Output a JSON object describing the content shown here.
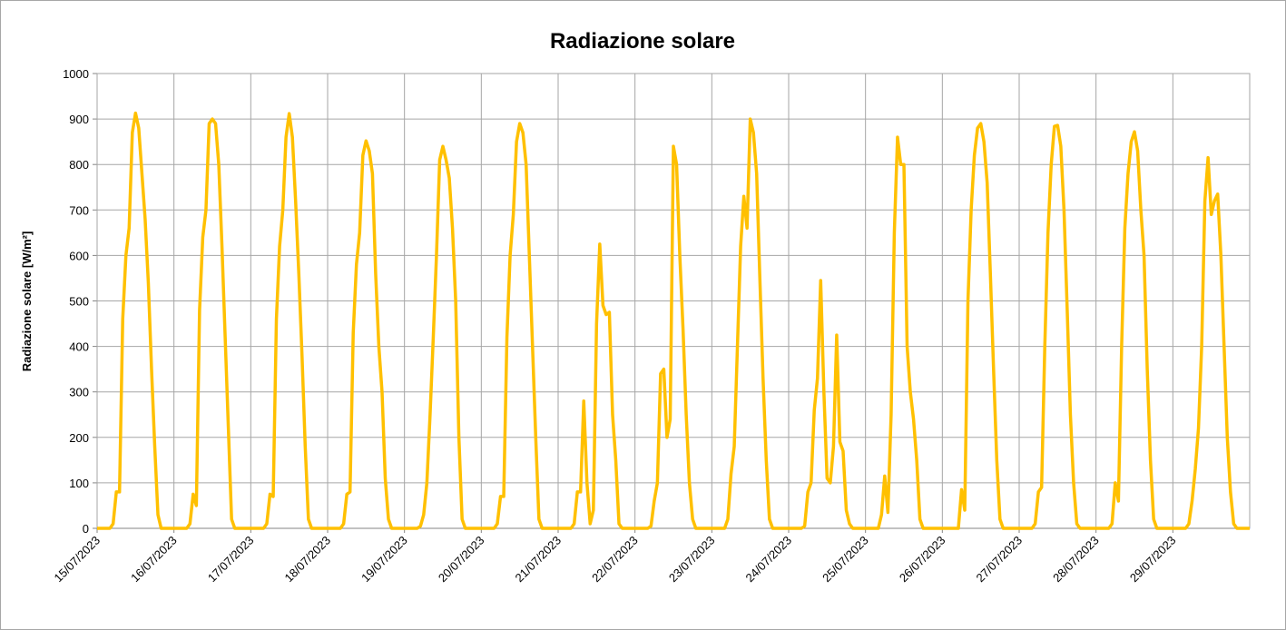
{
  "chart_data": {
    "type": "line",
    "title": "Radiazione solare",
    "y_label": "Radiazione solare [W/m²]",
    "color": "#ffc000",
    "grid": true,
    "xlim": [
      0,
      360
    ],
    "ylim": [
      0,
      1000
    ],
    "yticks": [
      0,
      100,
      200,
      300,
      400,
      500,
      600,
      700,
      800,
      900,
      1000
    ],
    "xticks": [
      {
        "value": 0,
        "label": "15/07/2023"
      },
      {
        "value": 24,
        "label": "16/07/2023"
      },
      {
        "value": 48,
        "label": "17/07/2023"
      },
      {
        "value": 72,
        "label": "18/07/2023"
      },
      {
        "value": 96,
        "label": "19/07/2023"
      },
      {
        "value": 120,
        "label": "20/07/2023"
      },
      {
        "value": 144,
        "label": "21/07/2023"
      },
      {
        "value": 168,
        "label": "22/07/2023"
      },
      {
        "value": 192,
        "label": "23/07/2023"
      },
      {
        "value": 216,
        "label": "24/07/2023"
      },
      {
        "value": 240,
        "label": "25/07/2023"
      },
      {
        "value": 264,
        "label": "26/07/2023"
      },
      {
        "value": 288,
        "label": "27/07/2023"
      },
      {
        "value": 312,
        "label": "28/07/2023"
      },
      {
        "value": 336,
        "label": "29/07/2023"
      }
    ],
    "x": [
      0,
      4,
      5,
      6,
      7,
      8,
      9,
      10,
      11,
      12,
      13,
      14,
      15,
      16,
      17,
      18,
      19,
      20,
      21,
      28,
      29,
      30,
      31,
      32,
      33,
      34,
      35,
      36,
      37,
      38,
      39,
      40,
      41,
      42,
      43,
      44,
      45,
      52,
      53,
      54,
      55,
      56,
      57,
      58,
      59,
      60,
      61,
      62,
      63,
      64,
      65,
      66,
      67,
      68,
      69,
      76,
      77,
      78,
      79,
      80,
      81,
      82,
      83,
      84,
      85,
      86,
      87,
      88,
      89,
      90,
      91,
      92,
      93,
      100,
      101,
      102,
      103,
      104,
      105,
      106,
      107,
      108,
      109,
      110,
      111,
      112,
      113,
      114,
      115,
      116,
      117,
      124,
      125,
      126,
      127,
      128,
      129,
      130,
      131,
      132,
      133,
      134,
      135,
      136,
      137,
      138,
      139,
      140,
      141,
      148,
      149,
      150,
      151,
      152,
      153,
      154,
      155,
      156,
      157,
      158,
      159,
      160,
      161,
      162,
      163,
      164,
      165,
      172,
      173,
      174,
      175,
      176,
      177,
      178,
      179,
      180,
      181,
      182,
      183,
      184,
      185,
      186,
      187,
      188,
      189,
      196,
      197,
      198,
      199,
      200,
      201,
      202,
      203,
      204,
      205,
      206,
      207,
      208,
      209,
      210,
      211,
      212,
      213,
      220,
      221,
      222,
      223,
      224,
      225,
      226,
      227,
      228,
      229,
      230,
      231,
      232,
      233,
      234,
      235,
      236,
      237,
      244,
      245,
      246,
      247,
      248,
      249,
      250,
      251,
      252,
      253,
      254,
      255,
      256,
      257,
      258,
      259,
      260,
      261,
      268,
      269,
      270,
      271,
      272,
      273,
      274,
      275,
      276,
      277,
      278,
      279,
      280,
      281,
      282,
      283,
      284,
      285,
      292,
      293,
      294,
      295,
      296,
      297,
      298,
      299,
      300,
      301,
      302,
      303,
      304,
      305,
      306,
      307,
      308,
      309,
      316,
      317,
      318,
      319,
      320,
      321,
      322,
      323,
      324,
      325,
      326,
      327,
      328,
      329,
      330,
      331,
      332,
      333,
      340,
      341,
      342,
      343,
      344,
      345,
      346,
      347,
      348,
      349,
      350,
      351,
      352,
      353,
      354,
      355,
      356,
      357,
      360
    ],
    "values": [
      0,
      0,
      10,
      80,
      80,
      460,
      600,
      660,
      870,
      913,
      880,
      780,
      680,
      540,
      350,
      180,
      30,
      0,
      0,
      0,
      10,
      75,
      50,
      480,
      640,
      700,
      890,
      900,
      890,
      800,
      620,
      420,
      220,
      20,
      0,
      0,
      0,
      0,
      10,
      75,
      70,
      460,
      620,
      700,
      860,
      912,
      860,
      720,
      560,
      380,
      180,
      20,
      0,
      0,
      0,
      0,
      10,
      75,
      80,
      430,
      580,
      650,
      820,
      852,
      830,
      780,
      560,
      400,
      300,
      110,
      20,
      0,
      0,
      0,
      5,
      30,
      100,
      250,
      420,
      600,
      810,
      840,
      810,
      770,
      660,
      500,
      200,
      20,
      0,
      0,
      0,
      0,
      10,
      70,
      70,
      420,
      600,
      690,
      850,
      890,
      870,
      800,
      600,
      400,
      200,
      20,
      0,
      0,
      0,
      0,
      10,
      80,
      80,
      280,
      100,
      10,
      40,
      450,
      625,
      490,
      470,
      475,
      250,
      150,
      10,
      0,
      0,
      0,
      5,
      60,
      100,
      340,
      350,
      200,
      240,
      840,
      800,
      600,
      440,
      250,
      100,
      20,
      0,
      0,
      0,
      0,
      20,
      120,
      180,
      400,
      620,
      730,
      660,
      900,
      870,
      780,
      550,
      330,
      150,
      20,
      0,
      0,
      0,
      0,
      5,
      80,
      100,
      260,
      330,
      545,
      300,
      110,
      100,
      180,
      425,
      190,
      170,
      40,
      10,
      0,
      0,
      0,
      30,
      115,
      35,
      250,
      650,
      860,
      800,
      800,
      400,
      300,
      240,
      150,
      20,
      0,
      0,
      0,
      0,
      0,
      0,
      85,
      40,
      500,
      700,
      820,
      880,
      890,
      850,
      760,
      560,
      350,
      150,
      20,
      0,
      0,
      0,
      0,
      10,
      80,
      90,
      400,
      650,
      800,
      884,
      886,
      840,
      700,
      480,
      250,
      100,
      10,
      0,
      0,
      0,
      0,
      10,
      100,
      60,
      400,
      660,
      780,
      850,
      872,
      830,
      700,
      600,
      350,
      150,
      20,
      0,
      0,
      0,
      0,
      10,
      60,
      130,
      220,
      400,
      720,
      815,
      690,
      720,
      735,
      600,
      400,
      200,
      80,
      10,
      0,
      0,
      0
    ]
  }
}
